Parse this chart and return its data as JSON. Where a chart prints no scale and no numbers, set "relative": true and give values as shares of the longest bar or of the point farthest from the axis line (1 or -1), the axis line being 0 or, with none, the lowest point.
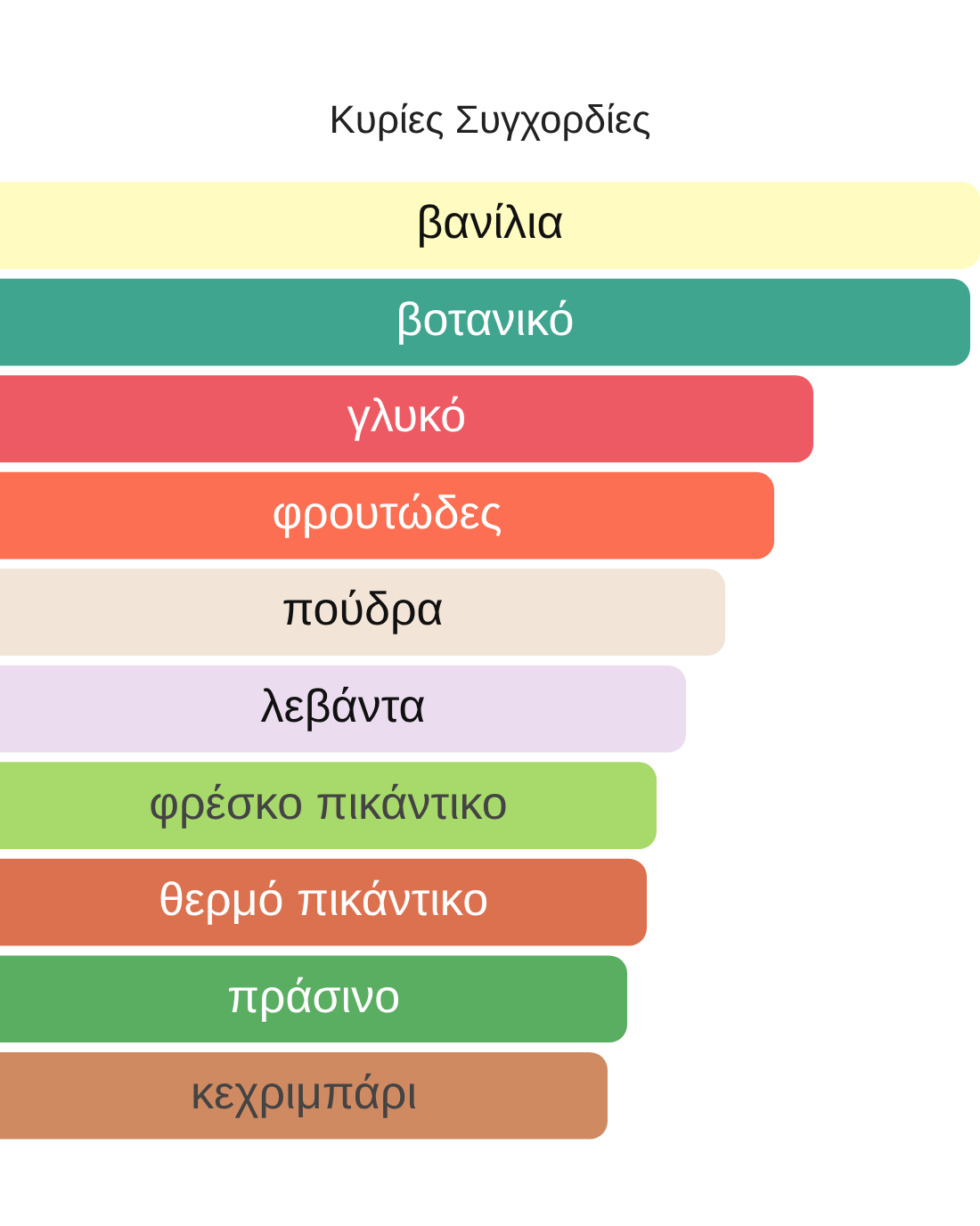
{
  "chart_data": {
    "type": "bar",
    "orientation": "horizontal",
    "relative": true,
    "title": "Κυρίες Συγχορδίες",
    "categories": [
      "βανίλια",
      "βοτανικό",
      "γλυκό",
      "φρουτώδες",
      "πούδρα",
      "λεβάντα",
      "φρέσκο πικάντικο",
      "θερμό πικάντικο",
      "πράσινο",
      "κεχριμπάρι"
    ],
    "values": [
      1,
      0.99,
      0.83,
      0.79,
      0.74,
      0.7,
      0.67,
      0.66,
      0.64,
      0.62
    ],
    "colors": [
      "#fffbc1",
      "#3fa58f",
      "#ee5a64",
      "#fc6f52",
      "#f2e5d8",
      "#ecdcef",
      "#a7d96b",
      "#dc714f",
      "#5aae61",
      "#cf8a62"
    ]
  }
}
